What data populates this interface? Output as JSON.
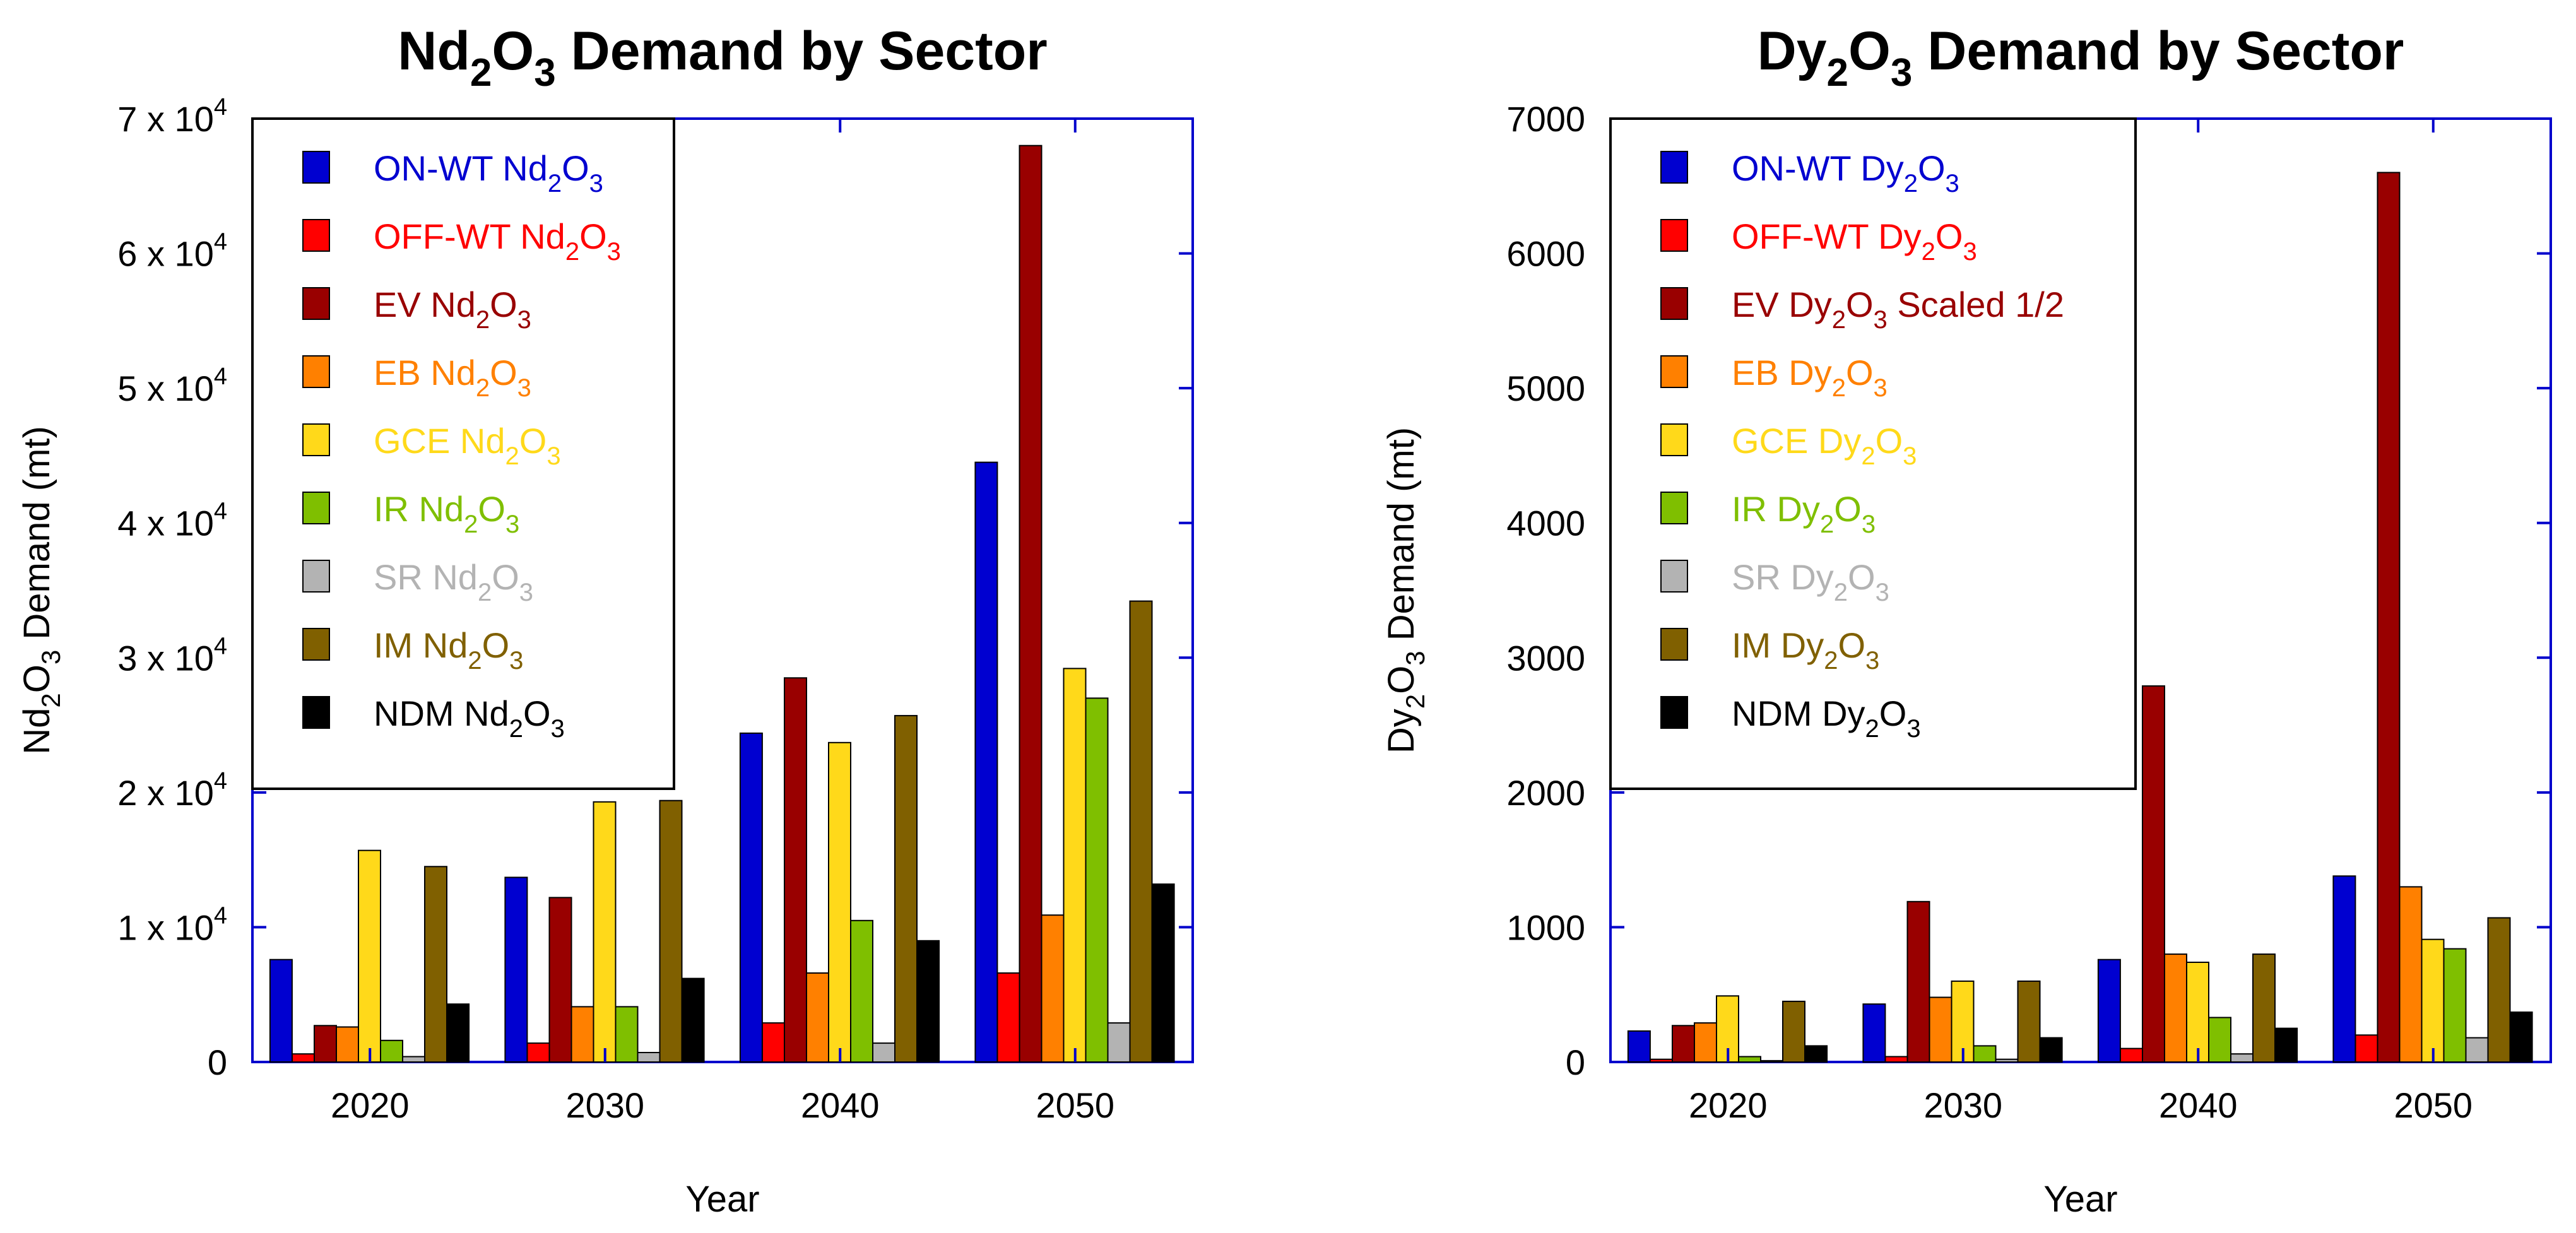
{
  "chart_data": [
    {
      "type": "bar",
      "title": {
        "base": "Nd",
        "s1": "2",
        "mid": "O",
        "s2": "3",
        "rest": " Demand by Sector"
      },
      "xlabel": "Year",
      "ylabel": {
        "base": "Nd",
        "s1": "2",
        "mid": "O",
        "s2": "3",
        "rest": " Demand (mt)"
      },
      "categories": [
        "2020",
        "2030",
        "2040",
        "2050"
      ],
      "ylim": [
        0,
        70000
      ],
      "yticks": [
        {
          "value": 0,
          "base": "0",
          "exp": ""
        },
        {
          "value": 10000,
          "base": "1 x 10",
          "exp": "4"
        },
        {
          "value": 20000,
          "base": "2 x 10",
          "exp": "4"
        },
        {
          "value": 30000,
          "base": "3 x 10",
          "exp": "4"
        },
        {
          "value": 40000,
          "base": "4 x 10",
          "exp": "4"
        },
        {
          "value": 50000,
          "base": "5 x 10",
          "exp": "4"
        },
        {
          "value": 60000,
          "base": "6 x 10",
          "exp": "4"
        },
        {
          "value": 70000,
          "base": "7 x 10",
          "exp": "4"
        }
      ],
      "legend_position": "top-left",
      "series": [
        {
          "name": "ON-WT",
          "color": "#0000d0",
          "legend": {
            "pre": "ON-WT Nd",
            "s1": "2",
            "mid": "O",
            "s2": "3",
            "post": ""
          },
          "values": [
            7600,
            13700,
            24400,
            44500
          ]
        },
        {
          "name": "OFF-WT",
          "color": "#ff0000",
          "legend": {
            "pre": "OFF-WT Nd",
            "s1": "2",
            "mid": "O",
            "s2": "3",
            "post": ""
          },
          "values": [
            600,
            1400,
            2900,
            6600
          ]
        },
        {
          "name": "EV",
          "color": "#990000",
          "legend": {
            "pre": "EV Nd",
            "s1": "2",
            "mid": "O",
            "s2": "3",
            "post": ""
          },
          "values": [
            2700,
            12200,
            28500,
            68000
          ]
        },
        {
          "name": "EB",
          "color": "#ff8000",
          "legend": {
            "pre": "EB Nd",
            "s1": "2",
            "mid": "O",
            "s2": "3",
            "post": ""
          },
          "values": [
            2600,
            4100,
            6600,
            10900
          ]
        },
        {
          "name": "GCE",
          "color": "#ffd91a",
          "legend": {
            "pre": "GCE Nd",
            "s1": "2",
            "mid": "O",
            "s2": "3",
            "post": ""
          },
          "values": [
            15700,
            19300,
            23700,
            29200
          ]
        },
        {
          "name": "IR",
          "color": "#7fbf00",
          "legend": {
            "pre": "IR Nd",
            "s1": "2",
            "mid": "O",
            "s2": "3",
            "post": ""
          },
          "values": [
            1600,
            4100,
            10500,
            27000
          ]
        },
        {
          "name": "SR",
          "color": "#b3b3b3",
          "legend": {
            "pre": "SR Nd",
            "s1": "2",
            "mid": "O",
            "s2": "3",
            "post": ""
          },
          "values": [
            400,
            700,
            1400,
            2900
          ]
        },
        {
          "name": "IM",
          "color": "#806000",
          "legend": {
            "pre": "IM Nd",
            "s1": "2",
            "mid": "O",
            "s2": "3",
            "post": ""
          },
          "values": [
            14500,
            19400,
            25700,
            34200
          ]
        },
        {
          "name": "NDM",
          "color": "#000000",
          "legend": {
            "pre": "NDM Nd",
            "s1": "2",
            "mid": "O",
            "s2": "3",
            "post": ""
          },
          "values": [
            4300,
            6200,
            9000,
            13200
          ]
        }
      ]
    },
    {
      "type": "bar",
      "title": {
        "base": "Dy",
        "s1": "2",
        "mid": "O",
        "s2": "3",
        "rest": " Demand by Sector"
      },
      "xlabel": "Year",
      "ylabel": {
        "base": "Dy",
        "s1": "2",
        "mid": "O",
        "s2": "3",
        "rest": " Demand (mt)"
      },
      "categories": [
        "2020",
        "2030",
        "2040",
        "2050"
      ],
      "ylim": [
        0,
        7000
      ],
      "yticks": [
        {
          "value": 0,
          "base": "0",
          "exp": ""
        },
        {
          "value": 1000,
          "base": "1000",
          "exp": ""
        },
        {
          "value": 2000,
          "base": "2000",
          "exp": ""
        },
        {
          "value": 3000,
          "base": "3000",
          "exp": ""
        },
        {
          "value": 4000,
          "base": "4000",
          "exp": ""
        },
        {
          "value": 5000,
          "base": "5000",
          "exp": ""
        },
        {
          "value": 6000,
          "base": "6000",
          "exp": ""
        },
        {
          "value": 7000,
          "base": "7000",
          "exp": ""
        }
      ],
      "legend_position": "top-left",
      "series": [
        {
          "name": "ON-WT",
          "color": "#0000d0",
          "legend": {
            "pre": "ON-WT Dy",
            "s1": "2",
            "mid": "O",
            "s2": "3",
            "post": ""
          },
          "values": [
            230,
            430,
            760,
            1380
          ]
        },
        {
          "name": "OFF-WT",
          "color": "#ff0000",
          "legend": {
            "pre": "OFF-WT Dy",
            "s1": "2",
            "mid": "O",
            "s2": "3",
            "post": ""
          },
          "values": [
            20,
            40,
            100,
            200
          ]
        },
        {
          "name": "EV",
          "color": "#990000",
          "legend": {
            "pre": "EV Dy",
            "s1": "2",
            "mid": "O",
            "s2": "3",
            "post": " Scaled 1/2"
          },
          "values": [
            270,
            1190,
            2790,
            6600
          ]
        },
        {
          "name": "EB",
          "color": "#ff8000",
          "legend": {
            "pre": "EB Dy",
            "s1": "2",
            "mid": "O",
            "s2": "3",
            "post": ""
          },
          "values": [
            290,
            480,
            800,
            1300
          ]
        },
        {
          "name": "GCE",
          "color": "#ffd91a",
          "legend": {
            "pre": "GCE Dy",
            "s1": "2",
            "mid": "O",
            "s2": "3",
            "post": ""
          },
          "values": [
            490,
            600,
            740,
            910
          ]
        },
        {
          "name": "IR",
          "color": "#7fbf00",
          "legend": {
            "pre": "IR Dy",
            "s1": "2",
            "mid": "O",
            "s2": "3",
            "post": ""
          },
          "values": [
            40,
            120,
            330,
            840
          ]
        },
        {
          "name": "SR",
          "color": "#b3b3b3",
          "legend": {
            "pre": "SR Dy",
            "s1": "2",
            "mid": "O",
            "s2": "3",
            "post": ""
          },
          "values": [
            10,
            20,
            60,
            180
          ]
        },
        {
          "name": "IM",
          "color": "#806000",
          "legend": {
            "pre": "IM Dy",
            "s1": "2",
            "mid": "O",
            "s2": "3",
            "post": ""
          },
          "values": [
            450,
            600,
            800,
            1070
          ]
        },
        {
          "name": "NDM",
          "color": "#000000",
          "legend": {
            "pre": "NDM Dy",
            "s1": "2",
            "mid": "O",
            "s2": "3",
            "post": ""
          },
          "values": [
            120,
            180,
            250,
            370
          ]
        }
      ]
    }
  ]
}
